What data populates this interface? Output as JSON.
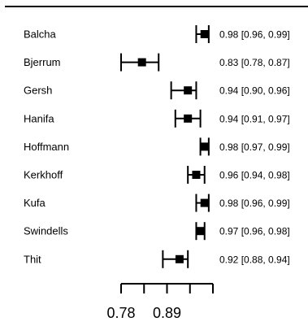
{
  "chart_data": {
    "type": "forest",
    "title": "",
    "xlabel": "",
    "ylabel": "",
    "xlim": [
      0.73,
      0.995
    ],
    "x_ticks": [
      {
        "value": 0.78,
        "label": "0.78"
      },
      {
        "value": 0.835,
        "label": ""
      },
      {
        "value": 0.89,
        "label": "0.89"
      },
      {
        "value": 0.945,
        "label": ""
      },
      {
        "value": 1.0,
        "label": ""
      }
    ],
    "studies": [
      {
        "name": "Balcha",
        "estimate": 0.98,
        "lower": 0.96,
        "upper": 0.99,
        "ci_text": "0.98 [0.96, 0.99]"
      },
      {
        "name": "Bjerrum",
        "estimate": 0.83,
        "lower": 0.78,
        "upper": 0.87,
        "ci_text": "0.83 [0.78, 0.87]"
      },
      {
        "name": "Gersh",
        "estimate": 0.94,
        "lower": 0.9,
        "upper": 0.96,
        "ci_text": "0.94 [0.90, 0.96]"
      },
      {
        "name": "Hanifa",
        "estimate": 0.94,
        "lower": 0.91,
        "upper": 0.97,
        "ci_text": "0.94 [0.91, 0.97]"
      },
      {
        "name": "Hoffmann",
        "estimate": 0.98,
        "lower": 0.97,
        "upper": 0.99,
        "ci_text": "0.98 [0.97, 0.99]"
      },
      {
        "name": "Kerkhoff",
        "estimate": 0.96,
        "lower": 0.94,
        "upper": 0.98,
        "ci_text": "0.96 [0.94, 0.98]"
      },
      {
        "name": "Kufa",
        "estimate": 0.98,
        "lower": 0.96,
        "upper": 0.99,
        "ci_text": "0.98 [0.96, 0.99]"
      },
      {
        "name": "Swindells",
        "estimate": 0.97,
        "lower": 0.96,
        "upper": 0.98,
        "ci_text": "0.97 [0.96, 0.98]"
      },
      {
        "name": "Thit",
        "estimate": 0.92,
        "lower": 0.88,
        "upper": 0.94,
        "ci_text": "0.92 [0.88, 0.94]"
      }
    ],
    "grid": false,
    "legend": "none",
    "colors": {
      "marks": "#000000",
      "background": "#ffffff"
    }
  }
}
